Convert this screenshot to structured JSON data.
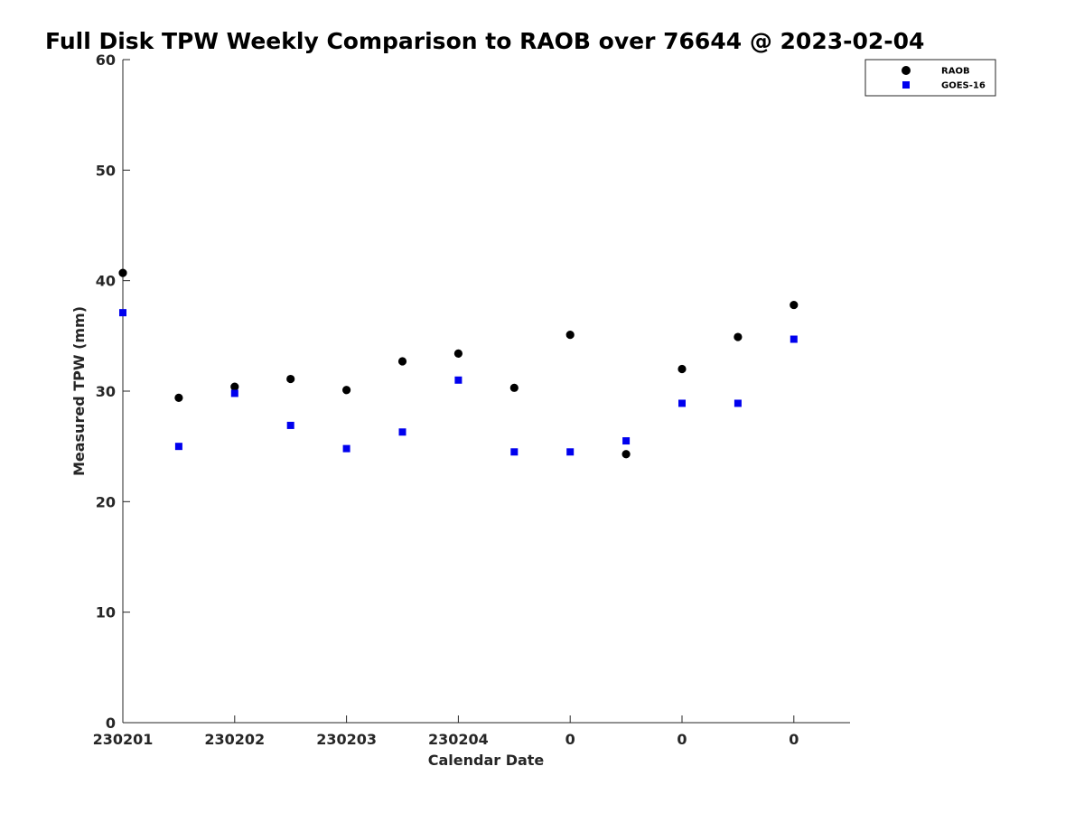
{
  "chart_data": {
    "type": "scatter",
    "title": "Full Disk TPW Weekly Comparison to RAOB over 76644 @ 2023-02-04",
    "xlabel": "Calendar Date",
    "ylabel": "Measured TPW (mm)",
    "ylim": [
      0,
      60
    ],
    "yticks": [
      0,
      10,
      20,
      30,
      40,
      50,
      60
    ],
    "xticks": [
      {
        "pos": 0,
        "label": "230201"
      },
      {
        "pos": 2,
        "label": "230202"
      },
      {
        "pos": 4,
        "label": "230203"
      },
      {
        "pos": 6,
        "label": "230204"
      },
      {
        "pos": 8,
        "label": "0"
      },
      {
        "pos": 10,
        "label": "0"
      },
      {
        "pos": 12,
        "label": "0"
      }
    ],
    "xlim": [
      0,
      13
    ],
    "grid": false,
    "legend_position": "top-right",
    "series": [
      {
        "name": "RAOB",
        "marker": "circle",
        "color": "#000000",
        "x": [
          0,
          1,
          2,
          3,
          4,
          5,
          6,
          7,
          8,
          9,
          10,
          11,
          12
        ],
        "values": [
          40.7,
          29.4,
          30.4,
          31.1,
          30.1,
          32.7,
          33.4,
          30.3,
          35.1,
          24.3,
          32.0,
          34.9,
          37.8
        ]
      },
      {
        "name": "GOES-16",
        "marker": "square",
        "color": "#0000ee",
        "x": [
          0,
          1,
          2,
          3,
          4,
          5,
          6,
          7,
          8,
          9,
          10,
          11,
          12
        ],
        "values": [
          37.1,
          25.0,
          29.8,
          26.9,
          24.8,
          26.3,
          31.0,
          24.5,
          24.5,
          25.5,
          28.9,
          28.9,
          34.7
        ]
      }
    ]
  }
}
